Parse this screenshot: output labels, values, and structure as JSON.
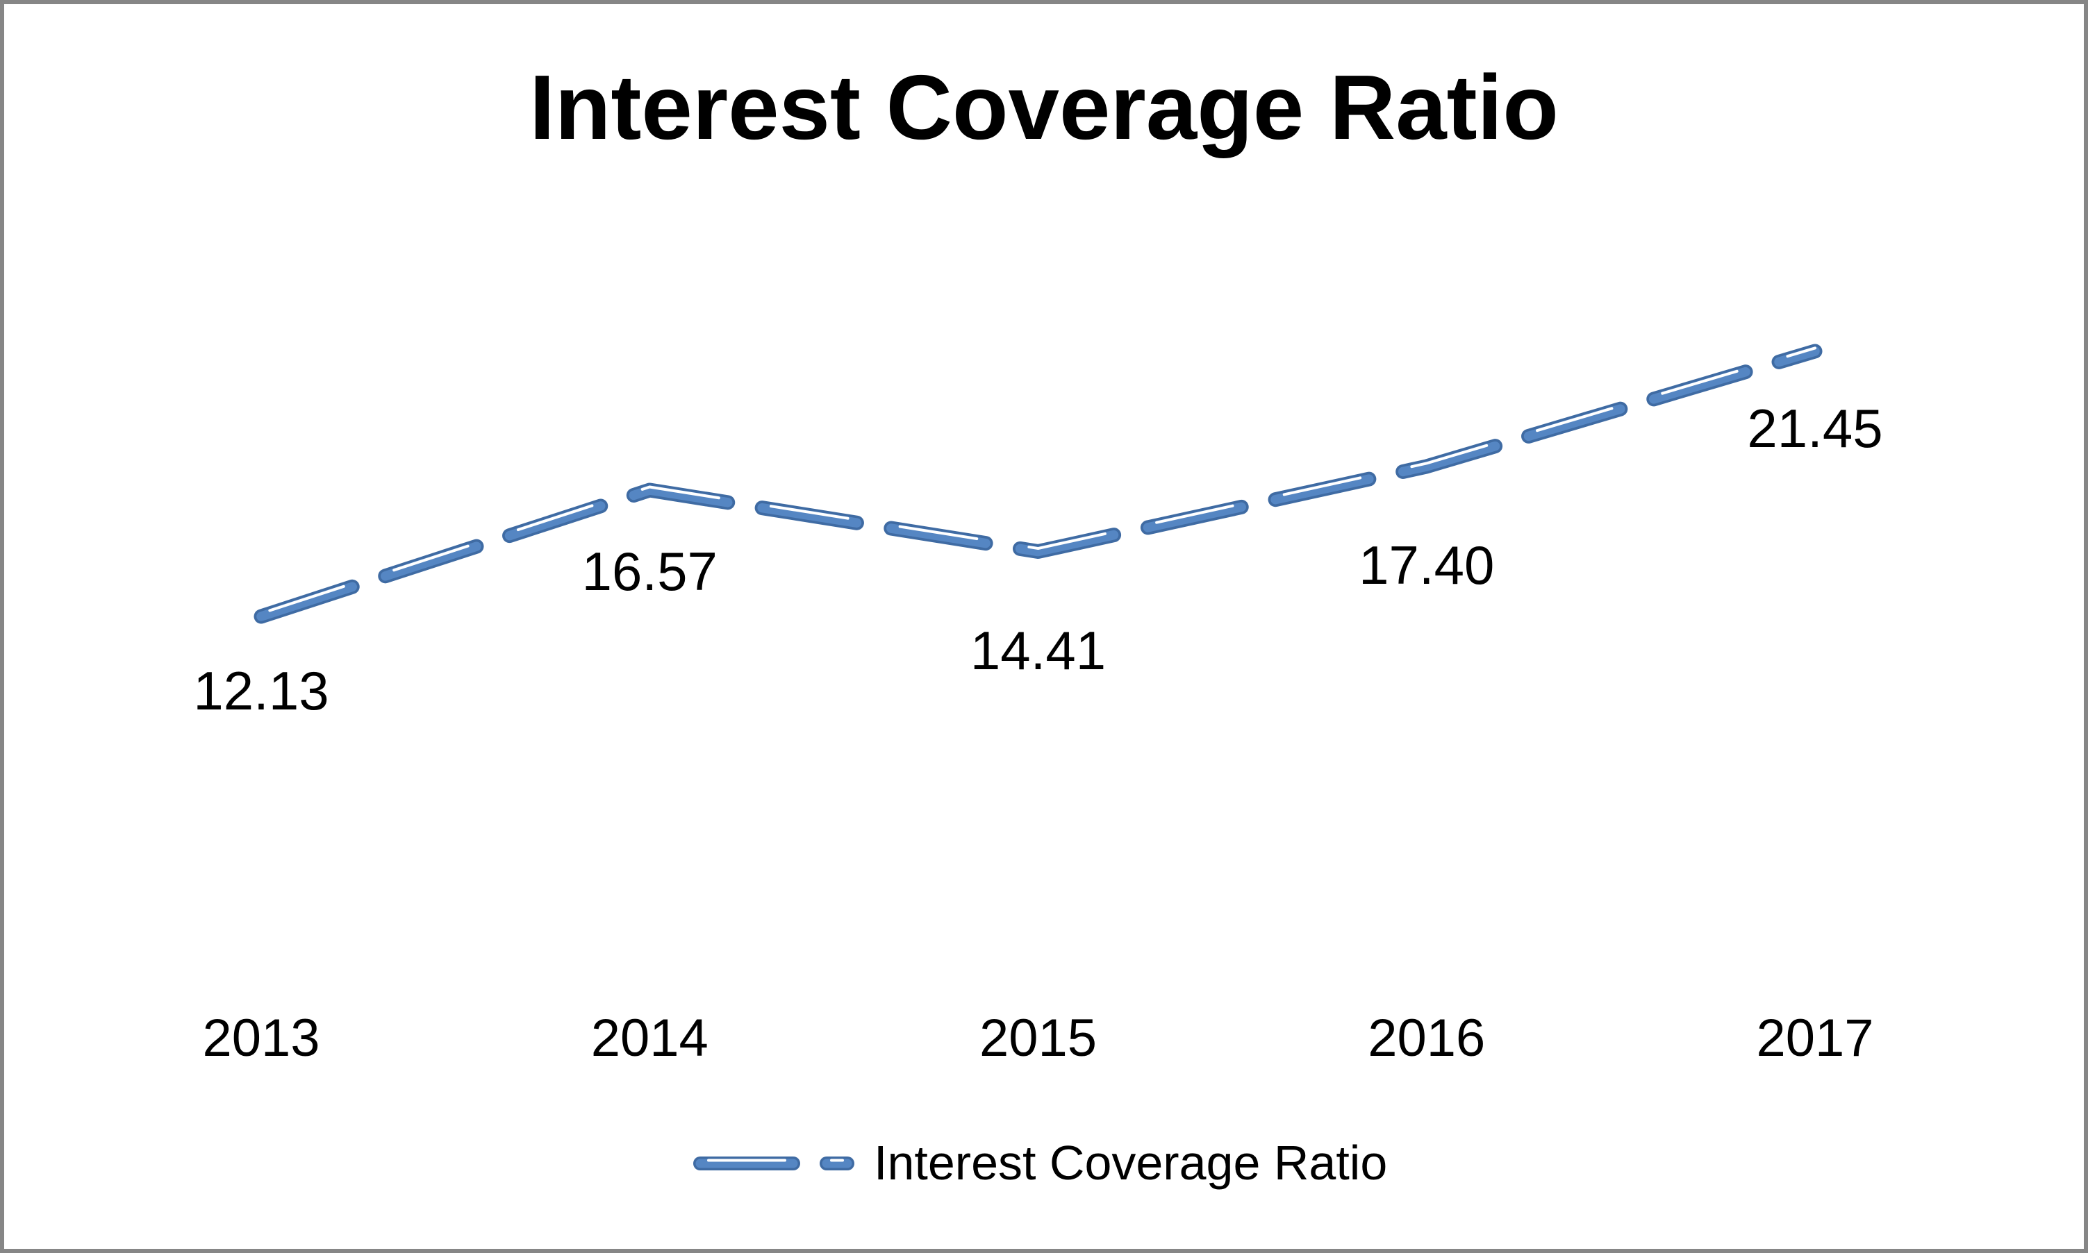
{
  "chart_data": {
    "type": "line",
    "title": "Interest Coverage Ratio",
    "categories": [
      "2013",
      "2014",
      "2015",
      "2016",
      "2017"
    ],
    "series": [
      {
        "name": "Interest Coverage Ratio",
        "values": [
          12.13,
          16.57,
          14.41,
          17.4,
          21.45
        ]
      }
    ],
    "data_labels": [
      "12.13",
      "16.57",
      "14.41",
      "17.40",
      "21.45"
    ],
    "xlabel": "",
    "ylabel": "",
    "axes_visible": false,
    "gridlines": false,
    "legend_position": "bottom",
    "line_style": "dashed",
    "colors": {
      "line_fill": "#5586C3",
      "line_outline": "#3F6BA3",
      "line_highlight": "#FFFFFF",
      "text": "#000000",
      "frame_border": "#868686",
      "background": "#FFFFFF"
    }
  }
}
